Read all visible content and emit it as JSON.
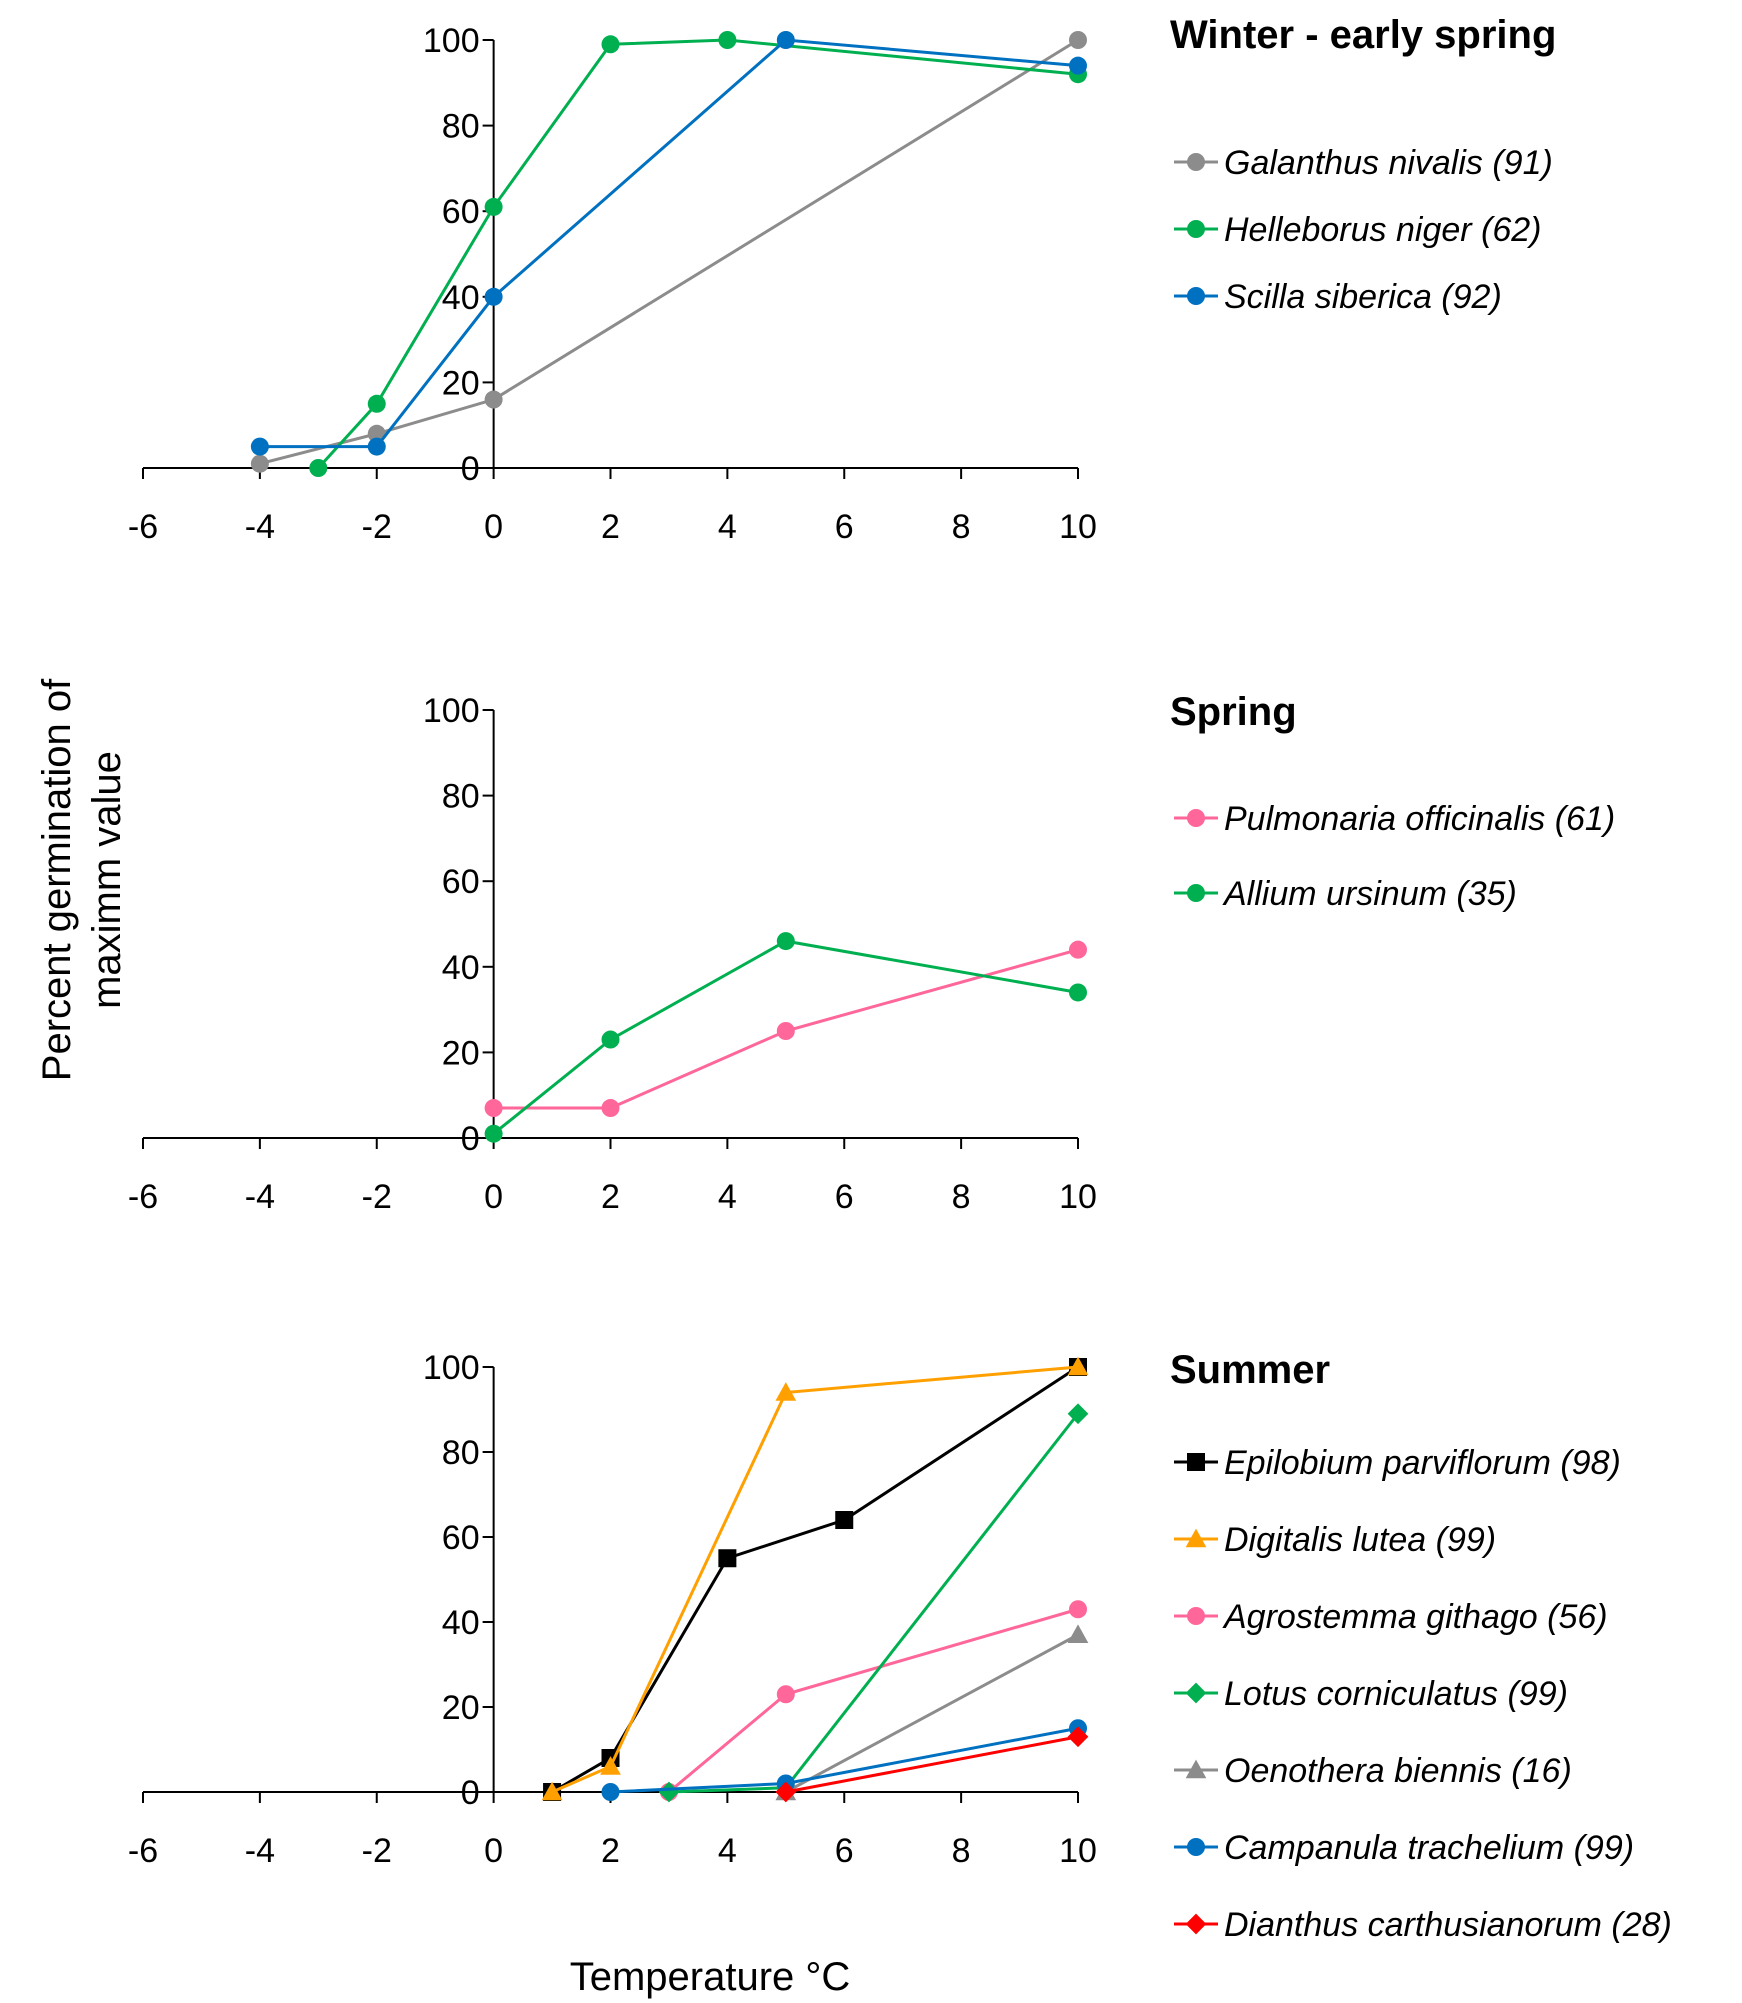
{
  "figure": {
    "ylabel_line1": "Percent germination of",
    "ylabel_line2": "maximm value",
    "xlabel": "Temperature °C"
  },
  "chart_data": [
    {
      "type": "line",
      "title": "Winter - early spring",
      "xlim": [
        -6,
        10
      ],
      "ylim": [
        0,
        100
      ],
      "x_ticks": [
        -6,
        -4,
        -2,
        0,
        2,
        4,
        6,
        8,
        10
      ],
      "y_ticks": [
        0,
        20,
        40,
        60,
        80,
        100
      ],
      "series": [
        {
          "name": "Galanthus nivalis (91)",
          "color": "#8c8c8c",
          "marker": "circle",
          "x": [
            -4,
            -2,
            0,
            10
          ],
          "y": [
            1,
            8,
            16,
            100
          ]
        },
        {
          "name": "Helleborus niger (62)",
          "color": "#00b050",
          "marker": "circle",
          "x": [
            -3,
            -2,
            0,
            2,
            4,
            10
          ],
          "y": [
            0,
            15,
            61,
            99,
            100,
            92
          ]
        },
        {
          "name": "Scilla siberica (92)",
          "color": "#0070c0",
          "marker": "circle",
          "x": [
            -4,
            -2,
            0,
            5,
            10
          ],
          "y": [
            5,
            5,
            40,
            100,
            94
          ]
        }
      ]
    },
    {
      "type": "line",
      "title": "Spring",
      "xlim": [
        -6,
        10
      ],
      "ylim": [
        0,
        100
      ],
      "x_ticks": [
        -6,
        -4,
        -2,
        0,
        2,
        4,
        6,
        8,
        10
      ],
      "y_ticks": [
        0,
        20,
        40,
        60,
        80,
        100
      ],
      "series": [
        {
          "name": "Pulmonaria officinalis (61)",
          "color": "#ff6699",
          "marker": "circle",
          "x": [
            0,
            2,
            5,
            10
          ],
          "y": [
            7,
            7,
            25,
            44
          ]
        },
        {
          "name": "Allium ursinum (35)",
          "color": "#00b050",
          "marker": "circle",
          "x": [
            0,
            2,
            5,
            10
          ],
          "y": [
            1,
            23,
            46,
            34
          ]
        }
      ]
    },
    {
      "type": "line",
      "title": "Summer",
      "xlim": [
        -6,
        10
      ],
      "ylim": [
        0,
        100
      ],
      "x_ticks": [
        -6,
        -4,
        -2,
        0,
        2,
        4,
        6,
        8,
        10
      ],
      "y_ticks": [
        0,
        20,
        40,
        60,
        80,
        100
      ],
      "series": [
        {
          "name": "Epilobium parviflorum (98)",
          "color": "#000000",
          "marker": "square",
          "x": [
            1,
            2,
            4,
            6,
            10
          ],
          "y": [
            0,
            8,
            55,
            64,
            100
          ]
        },
        {
          "name": "Digitalis lutea (99)",
          "color": "#ffa000",
          "marker": "triangle",
          "x": [
            1,
            2,
            5,
            10
          ],
          "y": [
            0,
            6,
            94,
            100
          ]
        },
        {
          "name": "Agrostemma githago (56)",
          "color": "#ff6699",
          "marker": "circle",
          "x": [
            3,
            5,
            10
          ],
          "y": [
            0,
            23,
            43
          ]
        },
        {
          "name": "Lotus corniculatus (99)",
          "color": "#00b050",
          "marker": "diamond",
          "x": [
            3,
            5,
            10
          ],
          "y": [
            0,
            1,
            89
          ]
        },
        {
          "name": "Oenothera biennis (16)",
          "color": "#8c8c8c",
          "marker": "triangle",
          "x": [
            5,
            10
          ],
          "y": [
            0,
            37
          ]
        },
        {
          "name": "Campanula trachelium (99)",
          "color": "#0070c0",
          "marker": "circle",
          "x": [
            2,
            5,
            10
          ],
          "y": [
            0,
            2,
            15
          ]
        },
        {
          "name": "Dianthus carthusianorum (28)",
          "color": "#ff0000",
          "marker": "diamond",
          "x": [
            5,
            10
          ],
          "y": [
            0,
            13
          ]
        }
      ]
    }
  ]
}
